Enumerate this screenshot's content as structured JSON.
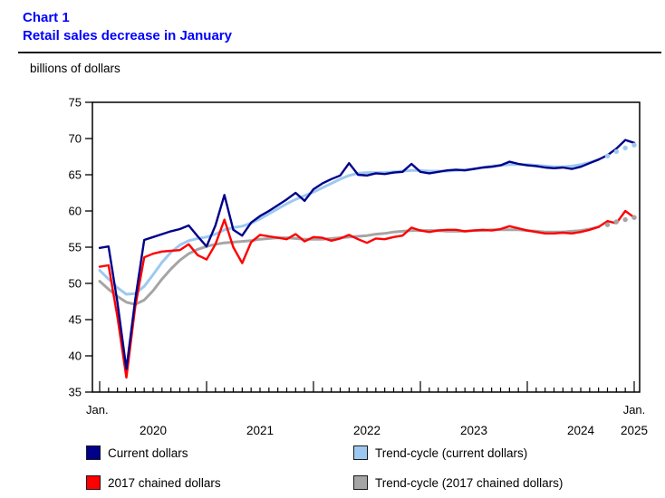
{
  "header": {
    "kicker": "Chart 1",
    "title": "Retail sales decrease in January"
  },
  "unit_label": "billions of dollars",
  "colors": {
    "title_blue": "#0000ff",
    "current_dollars": "#00008b",
    "trend_current": "#9dc9f0",
    "chained_2017": "#ff0000",
    "trend_chained": "#a5a5a5",
    "axis": "#000000"
  },
  "legend": [
    {
      "label": "Current dollars",
      "color": "#00008b"
    },
    {
      "label": "Trend-cycle (current dollars)",
      "color": "#9dc9f0"
    },
    {
      "label": "2017 chained dollars",
      "color": "#ff0000"
    },
    {
      "label": "Trend-cycle (2017 chained dollars)",
      "color": "#a5a5a5"
    }
  ],
  "chart_data": {
    "type": "line",
    "title": "Retail sales decrease in January",
    "ylabel": "billions of dollars",
    "ylim": [
      35,
      75
    ],
    "yticks": [
      35,
      40,
      45,
      50,
      55,
      60,
      65,
      70,
      75
    ],
    "grid": false,
    "legend_position": "bottom",
    "x_frequency": "monthly",
    "x_start": "Jan 2020",
    "x_end": "Jan 2025",
    "x_axis": {
      "start_label": "Jan.",
      "end_label": "Jan.",
      "year_labels": [
        "2020",
        "2021",
        "2022",
        "2023",
        "2024",
        "2025"
      ]
    },
    "series": [
      {
        "name": "Current dollars",
        "color": "#00008b",
        "line_width": 2.4,
        "values": [
          54.9,
          55.1,
          47.3,
          38.2,
          47.8,
          56.0,
          56.4,
          56.8,
          57.2,
          57.5,
          58.0,
          56.5,
          55.1,
          58.0,
          62.2,
          57.4,
          56.6,
          58.4,
          59.3,
          60.0,
          60.8,
          61.6,
          62.5,
          61.4,
          63.0,
          63.8,
          64.4,
          64.9,
          66.6,
          65.0,
          64.9,
          65.2,
          65.1,
          65.3,
          65.4,
          66.5,
          65.4,
          65.2,
          65.4,
          65.6,
          65.7,
          65.6,
          65.8,
          66.0,
          66.1,
          66.3,
          66.8,
          66.5,
          66.3,
          66.2,
          66.0,
          65.9,
          66.0,
          65.8,
          66.1,
          66.6,
          67.1,
          67.7,
          68.6,
          69.8,
          69.4
        ]
      },
      {
        "name": "Trend-cycle (current dollars)",
        "color": "#9dc9f0",
        "line_width": 3,
        "dotted_tail": 4,
        "values": [
          51.8,
          50.6,
          49.4,
          48.5,
          48.6,
          49.6,
          51.2,
          52.9,
          54.3,
          55.3,
          55.9,
          56.2,
          56.4,
          56.8,
          57.4,
          57.7,
          57.9,
          58.3,
          58.9,
          59.6,
          60.3,
          61.0,
          61.6,
          62.1,
          62.6,
          63.2,
          63.8,
          64.4,
          64.9,
          65.2,
          65.3,
          65.3,
          65.3,
          65.4,
          65.5,
          65.6,
          65.6,
          65.5,
          65.5,
          65.5,
          65.6,
          65.7,
          65.8,
          66.0,
          66.2,
          66.3,
          66.4,
          66.4,
          66.4,
          66.3,
          66.2,
          66.1,
          66.1,
          66.2,
          66.4,
          66.7,
          67.1,
          67.6,
          68.2,
          68.7,
          69.1
        ]
      },
      {
        "name": "2017 chained dollars",
        "color": "#ff0000",
        "line_width": 2.4,
        "values": [
          52.3,
          52.5,
          45.3,
          37.0,
          46.8,
          53.6,
          54.1,
          54.4,
          54.5,
          54.6,
          55.4,
          53.9,
          53.3,
          55.4,
          58.8,
          55.0,
          52.8,
          55.7,
          56.7,
          56.5,
          56.3,
          56.1,
          56.8,
          55.8,
          56.4,
          56.3,
          55.9,
          56.2,
          56.7,
          56.1,
          55.6,
          56.2,
          56.1,
          56.4,
          56.6,
          57.7,
          57.3,
          57.1,
          57.3,
          57.4,
          57.4,
          57.2,
          57.3,
          57.4,
          57.3,
          57.5,
          57.9,
          57.6,
          57.3,
          57.1,
          56.9,
          56.9,
          57.0,
          56.9,
          57.1,
          57.4,
          57.8,
          58.6,
          58.3,
          60.0,
          59.1
        ]
      },
      {
        "name": "Trend-cycle (2017 chained dollars)",
        "color": "#a5a5a5",
        "line_width": 3,
        "dotted_tail": 4,
        "values": [
          50.3,
          49.2,
          48.2,
          47.4,
          47.1,
          47.7,
          49.0,
          50.6,
          52.0,
          53.2,
          54.1,
          54.7,
          55.1,
          55.4,
          55.6,
          55.7,
          55.8,
          55.9,
          56.1,
          56.2,
          56.3,
          56.3,
          56.2,
          56.1,
          56.1,
          56.1,
          56.2,
          56.3,
          56.4,
          56.5,
          56.6,
          56.8,
          56.9,
          57.1,
          57.2,
          57.3,
          57.3,
          57.3,
          57.3,
          57.2,
          57.2,
          57.2,
          57.3,
          57.3,
          57.4,
          57.4,
          57.4,
          57.4,
          57.3,
          57.2,
          57.1,
          57.1,
          57.1,
          57.2,
          57.3,
          57.5,
          57.8,
          58.1,
          58.5,
          58.8,
          59.1
        ]
      }
    ]
  }
}
